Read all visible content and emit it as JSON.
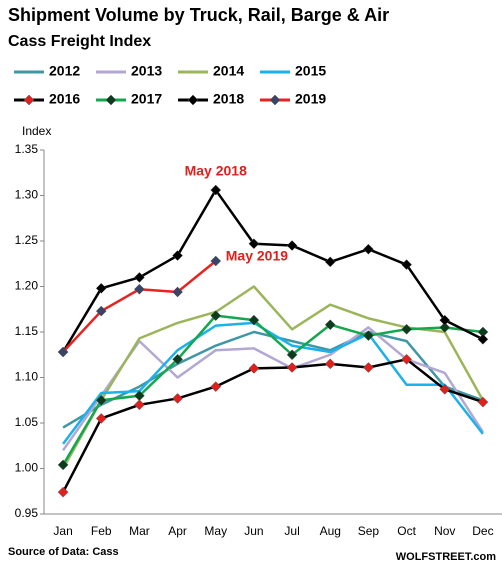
{
  "chart_data": {
    "type": "line",
    "title": "Shipment Volume by Truck, Rail, Barge & Air",
    "subtitle": "Cass Freight Index",
    "y_label": "Index",
    "source": "Source of Data: Cass",
    "brand": "WOLFSTREET.com",
    "annotations": [
      "May 2018",
      "May 2019"
    ],
    "categories": [
      "Jan",
      "Feb",
      "Mar",
      "Apr",
      "May",
      "Jun",
      "Jul",
      "Aug",
      "Sep",
      "Oct",
      "Nov",
      "Dec"
    ],
    "ylim": [
      0.95,
      1.35
    ],
    "yticks": [
      {
        "value": 0.95,
        "label": "0.95"
      },
      {
        "value": 1.0,
        "label": "1.00"
      },
      {
        "value": 1.05,
        "label": "1.05"
      },
      {
        "value": 1.1,
        "label": "1.10"
      },
      {
        "value": 1.15,
        "label": "1.15"
      },
      {
        "value": 1.2,
        "label": "1.20"
      },
      {
        "value": 1.25,
        "label": "1.25"
      },
      {
        "value": 1.3,
        "label": "1.30"
      },
      {
        "value": 1.35,
        "label": "1.35"
      }
    ],
    "series": [
      {
        "name": "2012",
        "color": "#3f97a6",
        "values": [
          1.045,
          1.07,
          1.09,
          1.115,
          1.135,
          1.15,
          1.14,
          1.13,
          1.15,
          1.14,
          1.09,
          1.075
        ]
      },
      {
        "name": "2013",
        "color": "#b3a7d3",
        "values": [
          1.02,
          1.08,
          1.14,
          1.1,
          1.13,
          1.132,
          1.11,
          1.125,
          1.155,
          1.12,
          1.105,
          1.04
        ]
      },
      {
        "name": "2014",
        "color": "#9bb55a",
        "values": [
          1.0,
          1.075,
          1.143,
          1.16,
          1.172,
          1.2,
          1.153,
          1.18,
          1.165,
          1.155,
          1.15,
          1.075
        ]
      },
      {
        "name": "2015",
        "color": "#1ab2ec",
        "values": [
          1.027,
          1.083,
          1.085,
          1.13,
          1.157,
          1.16,
          1.135,
          1.128,
          1.148,
          1.092,
          1.092,
          1.038
        ]
      },
      {
        "name": "2016",
        "color": "#000000",
        "marker_color": "#e0201c",
        "values": [
          0.974,
          1.055,
          1.07,
          1.077,
          1.09,
          1.11,
          1.111,
          1.115,
          1.111,
          1.12,
          1.087,
          1.073
        ]
      },
      {
        "name": "2017",
        "color": "#13a84e",
        "marker_color": "#0b3d1c",
        "values": [
          1.004,
          1.075,
          1.08,
          1.12,
          1.168,
          1.163,
          1.125,
          1.158,
          1.146,
          1.153,
          1.155,
          1.15
        ]
      },
      {
        "name": "2018",
        "color": "#000000",
        "marker_color": "#000000",
        "values": [
          1.128,
          1.198,
          1.21,
          1.234,
          1.306,
          1.247,
          1.245,
          1.227,
          1.241,
          1.224,
          1.163,
          1.142
        ]
      },
      {
        "name": "2019",
        "color": "#e8231f",
        "marker_color": "#3a4466",
        "values": [
          1.128,
          1.173,
          1.197,
          1.194,
          1.228,
          null,
          null,
          null,
          null,
          null,
          null,
          null
        ]
      }
    ]
  }
}
